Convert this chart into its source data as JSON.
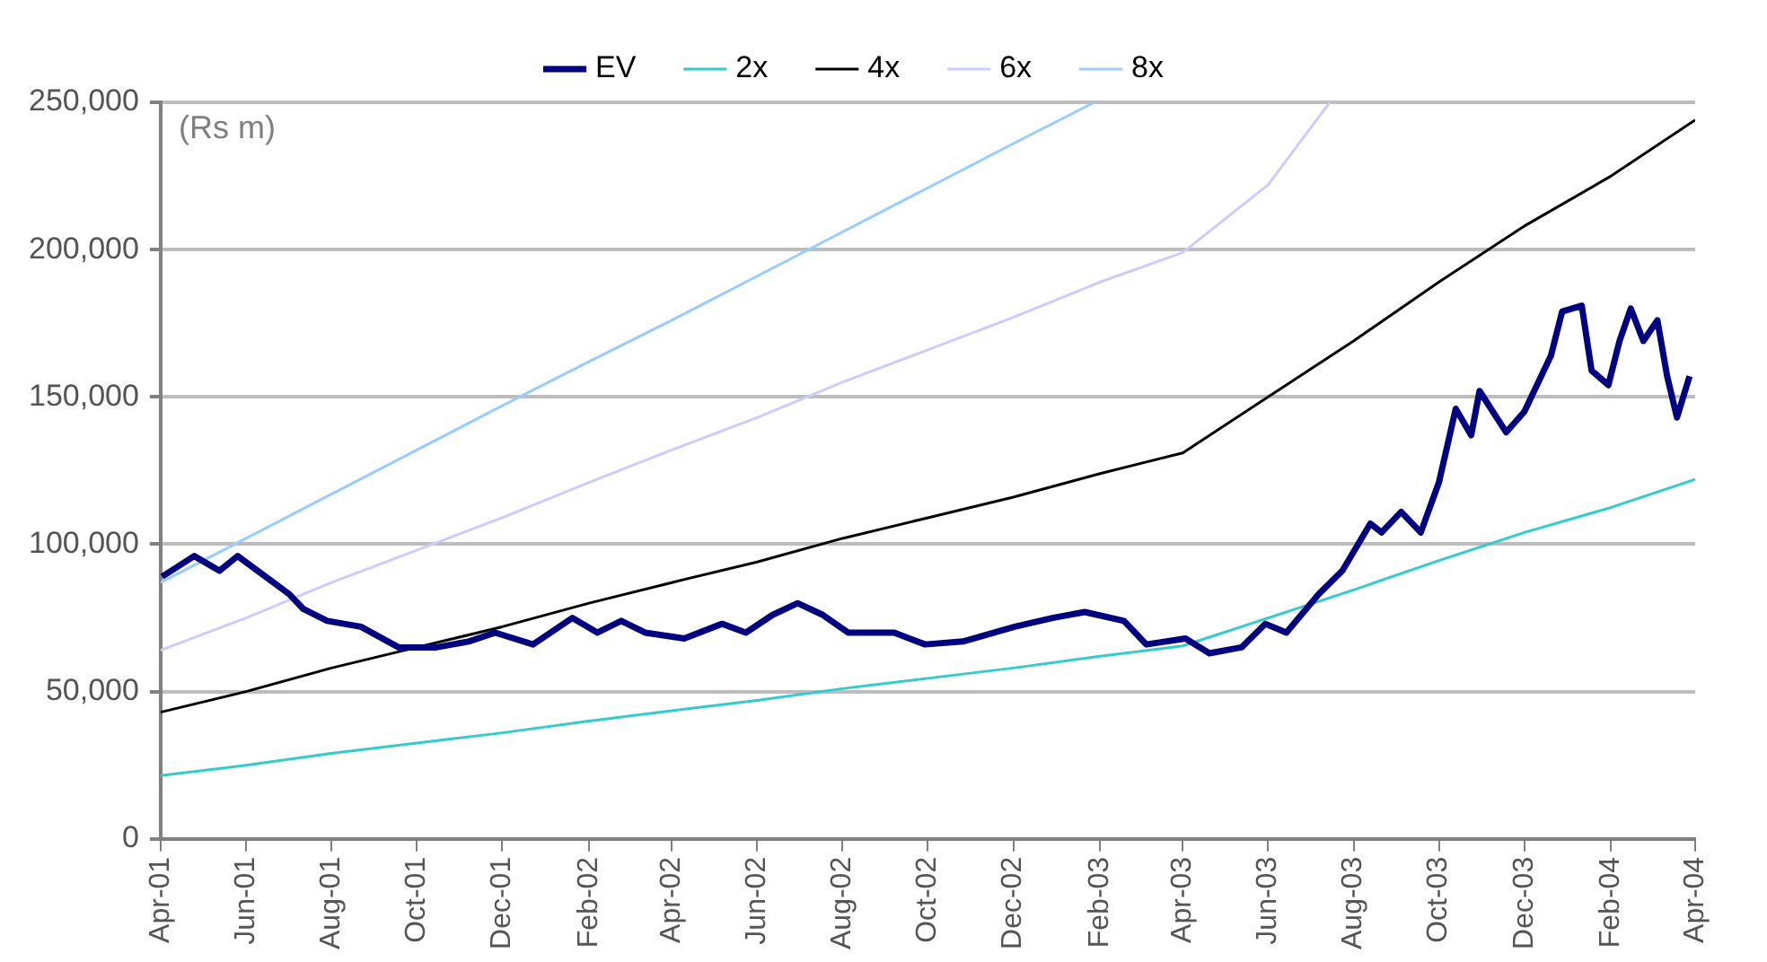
{
  "chart_data": {
    "type": "line",
    "annotations": [
      "(Rs m)"
    ],
    "xlim": [
      "2001-04",
      "2004-04"
    ],
    "xticks": [
      {
        "value": "2001-04",
        "label": "Apr-01"
      },
      {
        "value": "2001-06",
        "label": "Jun-01"
      },
      {
        "value": "2001-08",
        "label": "Aug-01"
      },
      {
        "value": "2001-10",
        "label": "Oct-01"
      },
      {
        "value": "2001-12",
        "label": "Dec-01"
      },
      {
        "value": "2002-02",
        "label": "Feb-02"
      },
      {
        "value": "2002-04",
        "label": "Apr-02"
      },
      {
        "value": "2002-06",
        "label": "Jun-02"
      },
      {
        "value": "2002-08",
        "label": "Aug-02"
      },
      {
        "value": "2002-10",
        "label": "Oct-02"
      },
      {
        "value": "2002-12",
        "label": "Dec-02"
      },
      {
        "value": "2003-02",
        "label": "Feb-03"
      },
      {
        "value": "2003-04",
        "label": "Apr-03"
      },
      {
        "value": "2003-06",
        "label": "Jun-03"
      },
      {
        "value": "2003-08",
        "label": "Aug-03"
      },
      {
        "value": "2003-10",
        "label": "Oct-03"
      },
      {
        "value": "2003-12",
        "label": "Dec-03"
      },
      {
        "value": "2004-02",
        "label": "Feb-04"
      },
      {
        "value": "2004-04",
        "label": "Apr-04"
      }
    ],
    "ylim": [
      0,
      250000
    ],
    "yticks": [
      {
        "value": 0,
        "label": "0"
      },
      {
        "value": 50000,
        "label": "50,000"
      },
      {
        "value": 100000,
        "label": "100,000"
      },
      {
        "value": 150000,
        "label": "150,000"
      },
      {
        "value": 200000,
        "label": "200,000"
      },
      {
        "value": 250000,
        "label": "250,000"
      }
    ],
    "grid": "y",
    "legend": "top",
    "line_style": "solid",
    "marker": "none",
    "series": [
      {
        "name": "EV",
        "color": "#000080",
        "x": [
          "2001-04-02",
          "2001-04-25",
          "2001-05-13",
          "2001-05-26",
          "2001-06-15",
          "2001-07-02",
          "2001-07-12",
          "2001-07-29",
          "2001-08-22",
          "2001-09-18",
          "2001-10-15",
          "2001-11-07",
          "2001-11-26",
          "2001-12-23",
          "2002-01-20",
          "2002-02-07",
          "2002-02-24",
          "2002-03-13",
          "2002-04-10",
          "2002-05-07",
          "2002-05-24",
          "2002-06-12",
          "2002-06-30",
          "2002-07-18",
          "2002-08-05",
          "2002-09-07",
          "2002-09-29",
          "2002-10-26",
          "2002-12-02",
          "2002-12-29",
          "2003-01-21",
          "2003-02-18",
          "2003-03-06",
          "2003-04-03",
          "2003-04-20",
          "2003-05-13",
          "2003-05-30",
          "2003-06-14",
          "2003-07-07",
          "2003-07-24",
          "2003-08-13",
          "2003-08-21",
          "2003-09-04",
          "2003-09-18",
          "2003-10-01",
          "2003-10-13",
          "2003-10-24",
          "2003-10-30",
          "2003-11-18",
          "2003-12-01",
          "2003-12-20",
          "2003-12-28",
          "2004-01-11",
          "2004-01-18",
          "2004-01-30",
          "2004-02-07",
          "2004-02-15",
          "2004-02-24",
          "2004-03-05",
          "2004-03-12",
          "2004-03-19",
          "2004-03-28"
        ],
        "values": [
          89000,
          96000,
          91000,
          96000,
          89000,
          83000,
          78000,
          74000,
          72000,
          65000,
          65000,
          67000,
          70000,
          66000,
          75000,
          70000,
          74000,
          70000,
          68000,
          73000,
          70000,
          76000,
          80000,
          76000,
          70000,
          70000,
          66000,
          67000,
          72000,
          75000,
          77000,
          74000,
          66000,
          68000,
          63000,
          65000,
          73000,
          70000,
          83000,
          91000,
          107000,
          104000,
          111000,
          104000,
          121000,
          146000,
          137000,
          152000,
          138000,
          145000,
          164000,
          179000,
          181000,
          159000,
          154000,
          169000,
          180000,
          169000,
          176000,
          157000,
          143000,
          157000
        ]
      },
      {
        "name": "2x",
        "color": "#33cccc",
        "x": [
          "2001-04",
          "2001-06",
          "2001-08",
          "2001-10",
          "2001-12",
          "2002-02",
          "2002-04",
          "2002-06",
          "2002-08",
          "2002-10",
          "2002-12",
          "2003-02",
          "2003-04",
          "2003-06",
          "2003-08",
          "2003-10",
          "2003-12",
          "2004-02",
          "2004-04"
        ],
        "values": [
          21500,
          25000,
          29000,
          32500,
          36000,
          40000,
          43500,
          47000,
          51000,
          54500,
          58000,
          62000,
          65500,
          75000,
          84500,
          94500,
          104000,
          112500,
          122000
        ]
      },
      {
        "name": "4x",
        "color": "#000000",
        "x": [
          "2001-04",
          "2001-06",
          "2001-08",
          "2001-10",
          "2001-12",
          "2002-02",
          "2002-04",
          "2002-06",
          "2002-08",
          "2002-10",
          "2002-12",
          "2003-02",
          "2003-04",
          "2003-06",
          "2003-08",
          "2003-10",
          "2003-12",
          "2004-02",
          "2004-04"
        ],
        "values": [
          43000,
          50000,
          58000,
          65000,
          72000,
          80000,
          87000,
          94000,
          102000,
          109000,
          116000,
          124000,
          131000,
          150000,
          169000,
          189000,
          208000,
          225000,
          244000
        ]
      },
      {
        "name": "6x",
        "color": "#ccccff",
        "x": [
          "2001-04",
          "2001-06",
          "2001-08",
          "2001-10",
          "2001-12",
          "2002-02",
          "2002-04",
          "2002-06",
          "2002-08",
          "2002-10",
          "2002-12",
          "2003-02",
          "2003-04",
          "2003-06",
          "2003-07-15"
        ],
        "values": [
          64000,
          75000,
          87000,
          98000,
          109000,
          121000,
          132000,
          143000,
          155000,
          166000,
          177000,
          189000,
          199000,
          222000,
          250000
        ]
      },
      {
        "name": "8x",
        "color": "#99ccff",
        "x": [
          "2001-04",
          "2001-06",
          "2001-08",
          "2001-10",
          "2001-12",
          "2002-02",
          "2002-04",
          "2002-06",
          "2002-08",
          "2002-10",
          "2002-12",
          "2003-01-28"
        ],
        "values": [
          87000,
          102000,
          117000,
          132000,
          147000,
          162000,
          176000,
          191000,
          206000,
          221000,
          236000,
          250000
        ]
      }
    ]
  }
}
